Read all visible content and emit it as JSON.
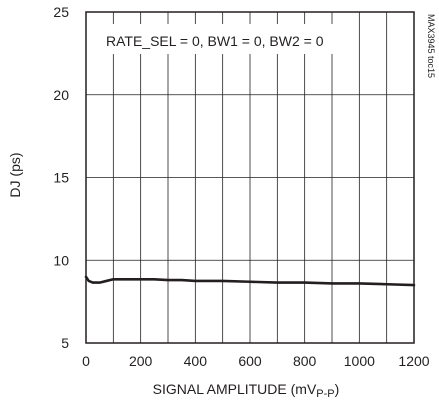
{
  "chart_data": {
    "type": "line",
    "xlabel": "SIGNAL AMPLITUDE (mV",
    "xlabel_subscript": "P-P",
    "xlabel_close": ")",
    "ylabel": "DJ (ps)",
    "xlim": [
      0,
      1200
    ],
    "ylim": [
      5,
      25
    ],
    "x_ticks": [
      0,
      200,
      400,
      600,
      800,
      1000,
      1200
    ],
    "y_ticks": [
      5,
      10,
      15,
      20,
      25
    ],
    "x_tick_labels": [
      "0",
      "200",
      "400",
      "600",
      "800",
      "1000",
      "1200"
    ],
    "y_tick_labels": [
      "5",
      "10",
      "15",
      "20",
      "25"
    ],
    "grid": true,
    "annotation": "RATE_SEL = 0, BW1 = 0, BW2 = 0",
    "side_label": "MAX3945 toc15",
    "series": [
      {
        "color": "#231f20",
        "x": [
          0,
          10,
          25,
          50,
          75,
          100,
          150,
          200,
          250,
          300,
          350,
          400,
          500,
          600,
          700,
          800,
          900,
          1000,
          1100,
          1200
        ],
        "y": [
          9.0,
          8.75,
          8.65,
          8.65,
          8.75,
          8.85,
          8.85,
          8.85,
          8.85,
          8.8,
          8.8,
          8.75,
          8.75,
          8.7,
          8.65,
          8.65,
          8.6,
          8.6,
          8.55,
          8.5
        ]
      }
    ]
  }
}
